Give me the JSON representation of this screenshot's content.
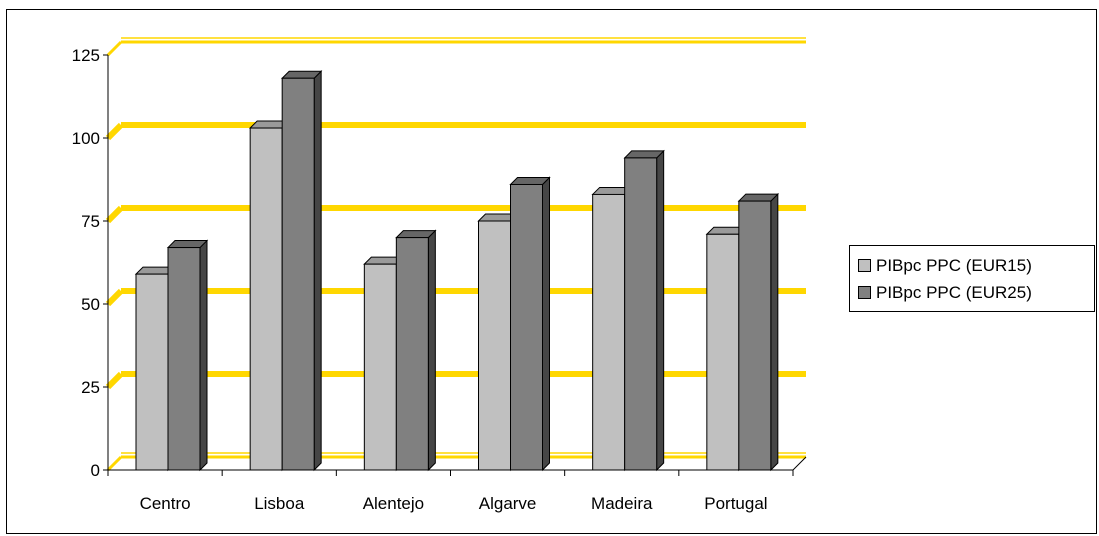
{
  "chart_data": {
    "type": "bar",
    "categories": [
      "Centro",
      "Lisboa",
      "Alentejo",
      "Algarve",
      "Madeira",
      "Portugal"
    ],
    "series": [
      {
        "name": "PIBpc PPC (EUR15)",
        "values": [
          59,
          103,
          62,
          75,
          83,
          71
        ],
        "color": "#c0c0c0"
      },
      {
        "name": "PIBpc PPC (EUR25)",
        "values": [
          67,
          118,
          70,
          86,
          94,
          81
        ],
        "color": "#808080"
      }
    ],
    "yticks": [
      "0",
      "25",
      "50",
      "75",
      "100",
      "125"
    ],
    "ylim": [
      0,
      125
    ],
    "grid": true,
    "gridline_color": "#ffd700",
    "legend_position": "right",
    "style": "3d-column"
  }
}
